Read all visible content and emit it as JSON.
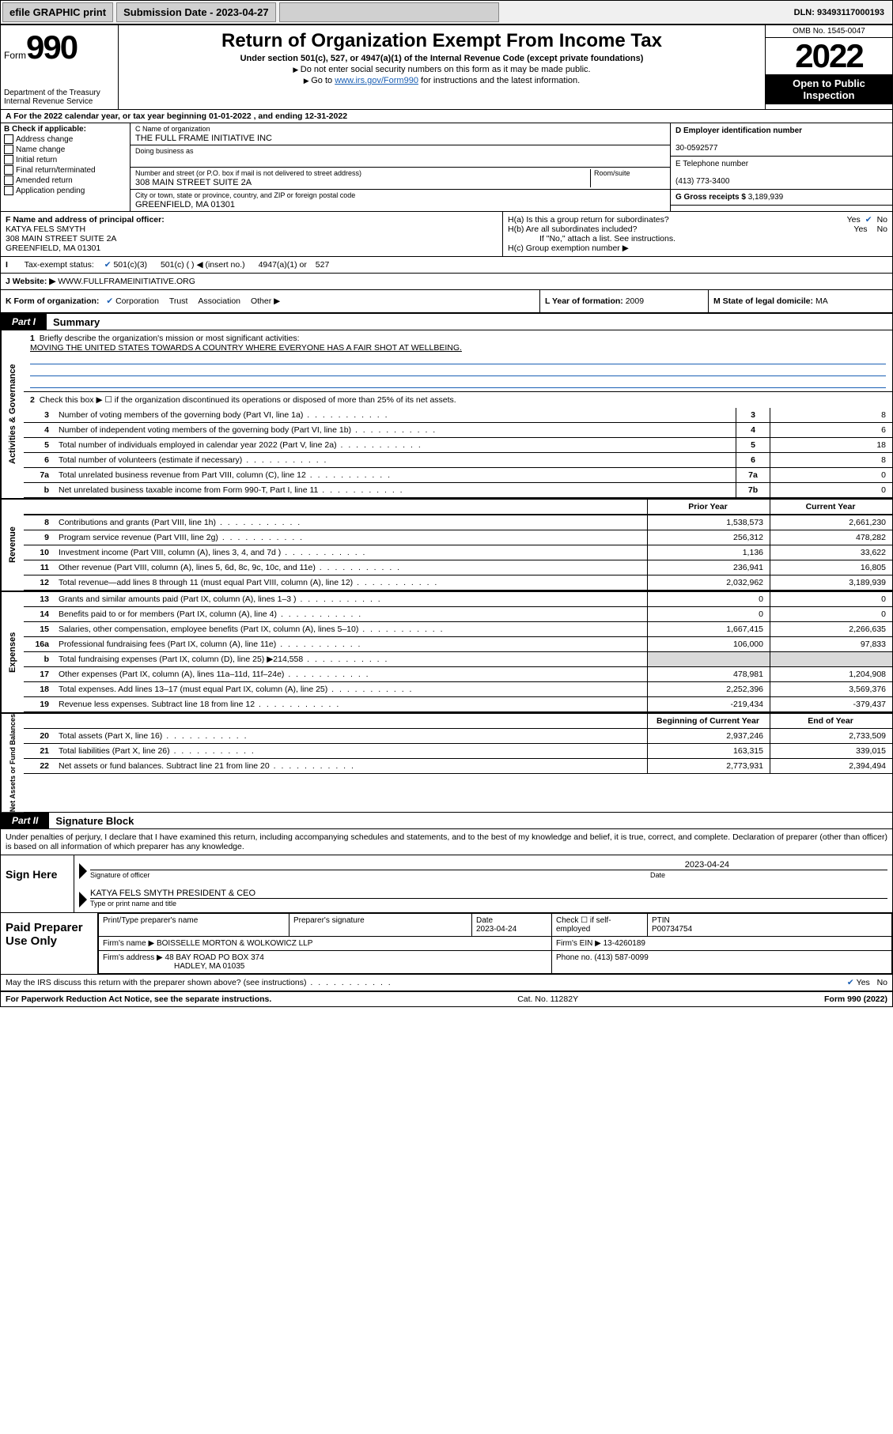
{
  "topbar": {
    "efile": "efile GRAPHIC print",
    "submission_label": "Submission Date - 2023-04-27",
    "dln": "DLN: 93493117000193"
  },
  "header": {
    "form_word": "Form",
    "form_num": "990",
    "dept": "Department of the Treasury",
    "irs": "Internal Revenue Service",
    "title": "Return of Organization Exempt From Income Tax",
    "sub": "Under section 501(c), 527, or 4947(a)(1) of the Internal Revenue Code (except private foundations)",
    "note1": "Do not enter social security numbers on this form as it may be made public.",
    "note2_pre": "Go to ",
    "note2_link": "www.irs.gov/Form990",
    "note2_post": " for instructions and the latest information.",
    "omb": "OMB No. 1545-0047",
    "year": "2022",
    "inspection": "Open to Public Inspection"
  },
  "line_a": "A For the 2022 calendar year, or tax year beginning 01-01-2022   , and ending 12-31-2022",
  "box_b": {
    "label": "B Check if applicable:",
    "items": [
      "Address change",
      "Name change",
      "Initial return",
      "Final return/terminated",
      "Amended return",
      "Application pending"
    ]
  },
  "box_c": {
    "name_lbl": "C Name of organization",
    "name": "THE FULL FRAME INITIATIVE INC",
    "dba_lbl": "Doing business as",
    "dba": "",
    "street_lbl": "Number and street (or P.O. box if mail is not delivered to street address)",
    "room_lbl": "Room/suite",
    "street": "308 MAIN STREET SUITE 2A",
    "city_lbl": "City or town, state or province, country, and ZIP or foreign postal code",
    "city": "GREENFIELD, MA  01301"
  },
  "box_d": {
    "label": "D Employer identification number",
    "value": "30-0592577"
  },
  "box_e": {
    "label": "E Telephone number",
    "value": "(413) 773-3400"
  },
  "box_g": {
    "label": "G Gross receipts $",
    "value": "3,189,939"
  },
  "box_f": {
    "label": "F Name and address of principal officer:",
    "line1": "KATYA FELS SMYTH",
    "line2": "308 MAIN STREET SUITE 2A",
    "line3": "GREENFIELD, MA  01301"
  },
  "box_h": {
    "a": "H(a)  Is this a group return for subordinates?",
    "a_yes": "Yes",
    "a_no": "No",
    "b": "H(b)  Are all subordinates included?",
    "b_yes": "Yes",
    "b_no": "No",
    "b_note": "If \"No,\" attach a list. See instructions.",
    "c": "H(c)  Group exemption number ▶"
  },
  "row_i": {
    "label": "Tax-exempt status:",
    "opt1": "501(c)(3)",
    "opt2": "501(c) (   ) ◀ (insert no.)",
    "opt3": "4947(a)(1) or",
    "opt4": "527"
  },
  "row_j": {
    "label": "J   Website: ▶",
    "value": "WWW.FULLFRAMEINITIATIVE.ORG"
  },
  "row_k": {
    "label": "K Form of organization:",
    "opt1": "Corporation",
    "opt2": "Trust",
    "opt3": "Association",
    "opt4": "Other ▶",
    "l_label": "L Year of formation:",
    "l_value": "2009",
    "m_label": "M State of legal domicile:",
    "m_value": "MA"
  },
  "part1": {
    "tab": "Part I",
    "title": "Summary"
  },
  "mission": {
    "num": "1",
    "label": "Briefly describe the organization's mission or most significant activities:",
    "text": "MOVING THE UNITED STATES TOWARDS A COUNTRY WHERE EVERYONE HAS A FAIR SHOT AT WELLBEING."
  },
  "governance": {
    "vtab": "Activities & Governance",
    "line2": "Check this box ▶ ☐  if the organization discontinued its operations or disposed of more than 25% of its net assets.",
    "rows": [
      {
        "n": "3",
        "d": "Number of voting members of the governing body (Part VI, line 1a)",
        "ln": "3",
        "v": "8"
      },
      {
        "n": "4",
        "d": "Number of independent voting members of the governing body (Part VI, line 1b)",
        "ln": "4",
        "v": "6"
      },
      {
        "n": "5",
        "d": "Total number of individuals employed in calendar year 2022 (Part V, line 2a)",
        "ln": "5",
        "v": "18"
      },
      {
        "n": "6",
        "d": "Total number of volunteers (estimate if necessary)",
        "ln": "6",
        "v": "8"
      },
      {
        "n": "7a",
        "d": "Total unrelated business revenue from Part VIII, column (C), line 12",
        "ln": "7a",
        "v": "0"
      },
      {
        "n": "b",
        "d": "Net unrelated business taxable income from Form 990-T, Part I, line 11",
        "ln": "7b",
        "v": "0"
      }
    ]
  },
  "revenue": {
    "vtab": "Revenue",
    "hdr_prior": "Prior Year",
    "hdr_curr": "Current Year",
    "rows": [
      {
        "n": "8",
        "d": "Contributions and grants (Part VIII, line 1h)",
        "p": "1,538,573",
        "c": "2,661,230"
      },
      {
        "n": "9",
        "d": "Program service revenue (Part VIII, line 2g)",
        "p": "256,312",
        "c": "478,282"
      },
      {
        "n": "10",
        "d": "Investment income (Part VIII, column (A), lines 3, 4, and 7d )",
        "p": "1,136",
        "c": "33,622"
      },
      {
        "n": "11",
        "d": "Other revenue (Part VIII, column (A), lines 5, 6d, 8c, 9c, 10c, and 11e)",
        "p": "236,941",
        "c": "16,805"
      },
      {
        "n": "12",
        "d": "Total revenue—add lines 8 through 11 (must equal Part VIII, column (A), line 12)",
        "p": "2,032,962",
        "c": "3,189,939"
      }
    ]
  },
  "expenses": {
    "vtab": "Expenses",
    "rows": [
      {
        "n": "13",
        "d": "Grants and similar amounts paid (Part IX, column (A), lines 1–3 )",
        "p": "0",
        "c": "0"
      },
      {
        "n": "14",
        "d": "Benefits paid to or for members (Part IX, column (A), line 4)",
        "p": "0",
        "c": "0"
      },
      {
        "n": "15",
        "d": "Salaries, other compensation, employee benefits (Part IX, column (A), lines 5–10)",
        "p": "1,667,415",
        "c": "2,266,635"
      },
      {
        "n": "16a",
        "d": "Professional fundraising fees (Part IX, column (A), line 11e)",
        "p": "106,000",
        "c": "97,833"
      },
      {
        "n": "b",
        "d": "Total fundraising expenses (Part IX, column (D), line 25) ▶214,558",
        "p": "",
        "c": "",
        "shade": true
      },
      {
        "n": "17",
        "d": "Other expenses (Part IX, column (A), lines 11a–11d, 11f–24e)",
        "p": "478,981",
        "c": "1,204,908"
      },
      {
        "n": "18",
        "d": "Total expenses. Add lines 13–17 (must equal Part IX, column (A), line 25)",
        "p": "2,252,396",
        "c": "3,569,376"
      },
      {
        "n": "19",
        "d": "Revenue less expenses. Subtract line 18 from line 12",
        "p": "-219,434",
        "c": "-379,437"
      }
    ]
  },
  "netassets": {
    "vtab": "Net Assets or Fund Balances",
    "hdr_begin": "Beginning of Current Year",
    "hdr_end": "End of Year",
    "rows": [
      {
        "n": "20",
        "d": "Total assets (Part X, line 16)",
        "p": "2,937,246",
        "c": "2,733,509"
      },
      {
        "n": "21",
        "d": "Total liabilities (Part X, line 26)",
        "p": "163,315",
        "c": "339,015"
      },
      {
        "n": "22",
        "d": "Net assets or fund balances. Subtract line 21 from line 20",
        "p": "2,773,931",
        "c": "2,394,494"
      }
    ]
  },
  "part2": {
    "tab": "Part II",
    "title": "Signature Block"
  },
  "sig": {
    "intro": "Under penalties of perjury, I declare that I have examined this return, including accompanying schedules and statements, and to the best of my knowledge and belief, it is true, correct, and complete. Declaration of preparer (other than officer) is based on all information of which preparer has any knowledge.",
    "sign_here": "Sign Here",
    "officer_sig_lbl": "Signature of officer",
    "date_lbl": "Date",
    "date_val": "2023-04-24",
    "officer_name": "KATYA FELS SMYTH  PRESIDENT & CEO",
    "officer_name_lbl": "Type or print name and title"
  },
  "preparer": {
    "label": "Paid Preparer Use Only",
    "name_lbl": "Print/Type preparer's name",
    "sig_lbl": "Preparer's signature",
    "date_lbl": "Date",
    "date": "2023-04-24",
    "check_lbl": "Check ☐ if self-employed",
    "ptin_lbl": "PTIN",
    "ptin": "P00734754",
    "firm_name_lbl": "Firm's name    ▶",
    "firm_name": "BOISSELLE MORTON & WOLKOWICZ LLP",
    "firm_ein_lbl": "Firm's EIN ▶",
    "firm_ein": "13-4260189",
    "firm_addr_lbl": "Firm's address ▶",
    "firm_addr1": "48 BAY ROAD PO BOX 374",
    "firm_addr2": "HADLEY, MA  01035",
    "phone_lbl": "Phone no.",
    "phone": "(413) 587-0099"
  },
  "discuss": {
    "q": "May the IRS discuss this return with the preparer shown above? (see instructions)",
    "yes": "Yes",
    "no": "No"
  },
  "footer": {
    "left": "For Paperwork Reduction Act Notice, see the separate instructions.",
    "mid": "Cat. No. 11282Y",
    "right": "Form 990 (2022)"
  },
  "colors": {
    "link": "#1a5fb4",
    "black": "#000000",
    "shade": "#d9d9d9"
  }
}
